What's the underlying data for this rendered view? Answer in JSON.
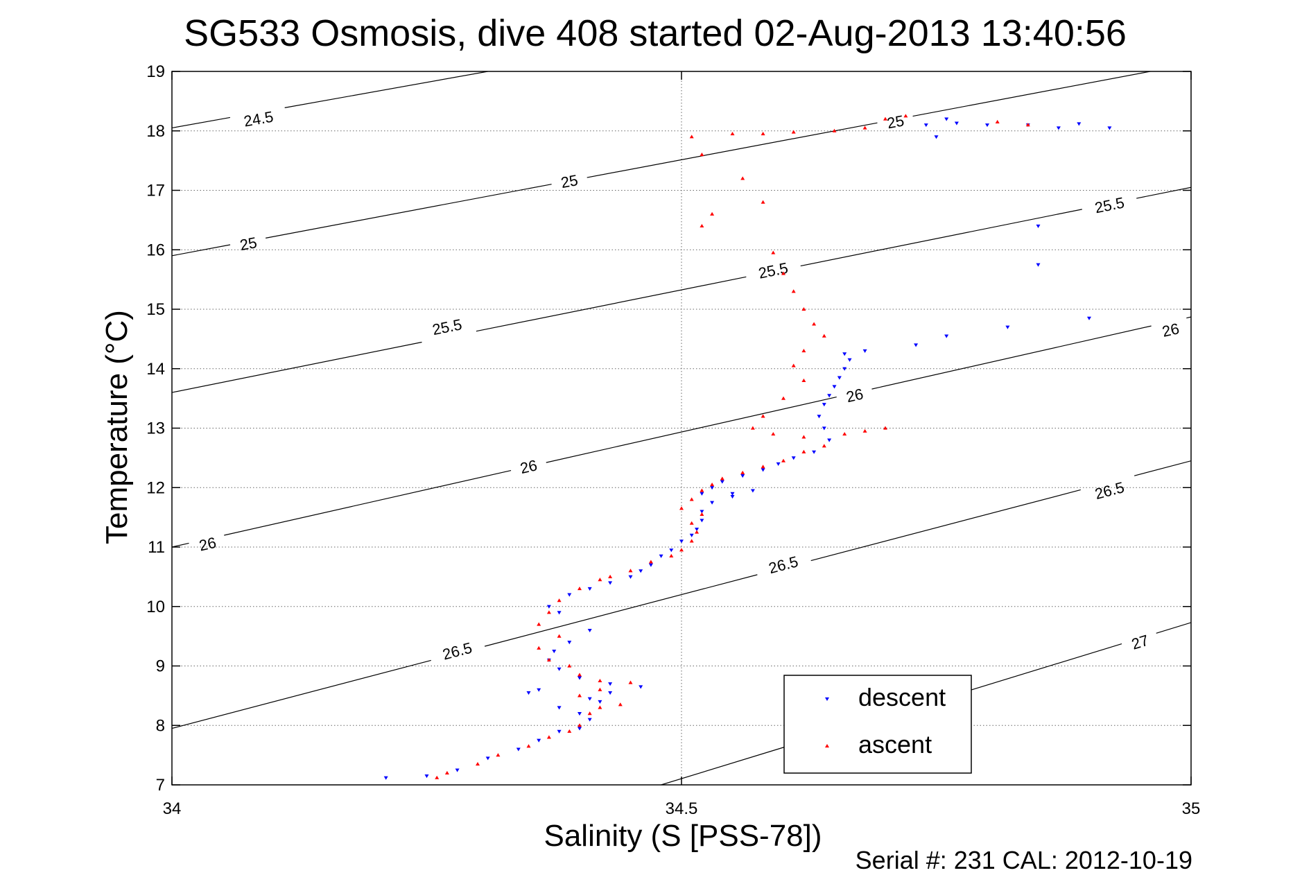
{
  "chart_data": {
    "type": "scatter",
    "title": "SG533 Osmosis, dive 408 started 02-Aug-2013 13:40:56",
    "xlabel": "Salinity (S [PSS-78])",
    "ylabel": "Temperature (°C)",
    "xlim": [
      34,
      35
    ],
    "ylim": [
      7,
      19
    ],
    "xticks": [
      34,
      34.5,
      35
    ],
    "xtick_labels": [
      "34",
      "34.5",
      "35"
    ],
    "yticks": [
      7,
      8,
      9,
      10,
      11,
      12,
      13,
      14,
      15,
      16,
      17,
      18,
      19
    ],
    "ytick_labels": [
      "7",
      "8",
      "9",
      "10",
      "11",
      "12",
      "13",
      "14",
      "15",
      "16",
      "17",
      "18",
      "19"
    ],
    "grid": true,
    "legend_position": "bottom-right",
    "footer": "Serial #: 231  CAL: 2012-10-19",
    "density_contours": [
      {
        "label": "24.5",
        "points": [
          [
            34.0,
            18.05
          ],
          [
            34.31,
            19.0
          ]
        ],
        "label_positions": [
          [
            34.085,
            18.2
          ]
        ]
      },
      {
        "label": "25",
        "points": [
          [
            34.0,
            15.9
          ],
          [
            34.96,
            19.0
          ]
        ],
        "label_positions": [
          [
            34.075,
            16.1
          ],
          [
            34.39,
            17.15
          ],
          [
            34.71,
            18.15
          ]
        ]
      },
      {
        "label": "25.5",
        "points": [
          [
            34.0,
            13.6
          ],
          [
            35.0,
            17.05
          ]
        ],
        "label_positions": [
          [
            34.27,
            14.7
          ],
          [
            34.59,
            15.65
          ],
          [
            34.92,
            16.75
          ]
        ]
      },
      {
        "label": "26",
        "points": [
          [
            34.0,
            11.0
          ],
          [
            35.0,
            14.87
          ]
        ],
        "label_positions": [
          [
            34.035,
            11.05
          ],
          [
            34.35,
            12.35
          ],
          [
            34.67,
            13.55
          ],
          [
            34.98,
            14.65
          ]
        ]
      },
      {
        "label": "26.5",
        "points": [
          [
            34.0,
            7.95
          ],
          [
            35.0,
            12.45
          ]
        ],
        "label_positions": [
          [
            34.28,
            9.25
          ],
          [
            34.6,
            10.7
          ],
          [
            34.92,
            11.95
          ]
        ]
      },
      {
        "label": "27",
        "points": [
          [
            34.48,
            7.0
          ],
          [
            35.0,
            9.73
          ]
        ],
        "label_positions": [
          [
            34.95,
            9.4
          ]
        ]
      }
    ],
    "series": [
      {
        "name": "descent",
        "color": "#0000ff",
        "marker": "triangle-down",
        "points": [
          [
            34.77,
            18.13
          ],
          [
            34.75,
            17.9
          ],
          [
            34.74,
            18.1
          ],
          [
            34.76,
            18.2
          ],
          [
            34.8,
            18.1
          ],
          [
            34.84,
            18.1
          ],
          [
            34.87,
            18.05
          ],
          [
            34.89,
            18.12
          ],
          [
            34.92,
            18.05
          ],
          [
            34.85,
            16.4
          ],
          [
            34.85,
            15.75
          ],
          [
            34.9,
            14.85
          ],
          [
            34.82,
            14.7
          ],
          [
            34.76,
            14.55
          ],
          [
            34.73,
            14.4
          ],
          [
            34.68,
            14.3
          ],
          [
            34.66,
            14.25
          ],
          [
            34.665,
            14.15
          ],
          [
            34.66,
            14.0
          ],
          [
            34.655,
            13.85
          ],
          [
            34.65,
            13.7
          ],
          [
            34.645,
            13.55
          ],
          [
            34.64,
            13.4
          ],
          [
            34.635,
            13.2
          ],
          [
            34.64,
            13.0
          ],
          [
            34.645,
            12.8
          ],
          [
            34.63,
            12.6
          ],
          [
            34.61,
            12.5
          ],
          [
            34.595,
            12.4
          ],
          [
            34.58,
            12.3
          ],
          [
            34.56,
            12.2
          ],
          [
            34.54,
            12.1
          ],
          [
            34.53,
            12.0
          ],
          [
            34.52,
            11.9
          ],
          [
            34.55,
            11.9
          ],
          [
            34.57,
            11.95
          ],
          [
            34.55,
            11.85
          ],
          [
            34.53,
            11.75
          ],
          [
            34.52,
            11.6
          ],
          [
            34.52,
            11.45
          ],
          [
            34.515,
            11.3
          ],
          [
            34.51,
            11.2
          ],
          [
            34.5,
            11.1
          ],
          [
            34.49,
            10.95
          ],
          [
            34.48,
            10.85
          ],
          [
            34.47,
            10.7
          ],
          [
            34.46,
            10.6
          ],
          [
            34.45,
            10.5
          ],
          [
            34.43,
            10.4
          ],
          [
            34.41,
            10.3
          ],
          [
            34.39,
            10.2
          ],
          [
            34.37,
            10.0
          ],
          [
            34.38,
            9.9
          ],
          [
            34.41,
            9.6
          ],
          [
            34.39,
            9.4
          ],
          [
            34.375,
            9.25
          ],
          [
            34.37,
            9.1
          ],
          [
            34.38,
            8.95
          ],
          [
            34.4,
            8.8
          ],
          [
            34.43,
            8.7
          ],
          [
            34.46,
            8.65
          ],
          [
            34.43,
            8.55
          ],
          [
            34.41,
            8.45
          ],
          [
            34.38,
            8.3
          ],
          [
            34.4,
            8.2
          ],
          [
            34.41,
            8.1
          ],
          [
            34.4,
            7.95
          ],
          [
            34.38,
            7.9
          ],
          [
            34.36,
            7.75
          ],
          [
            34.34,
            7.6
          ],
          [
            34.31,
            7.45
          ],
          [
            34.28,
            7.25
          ],
          [
            34.25,
            7.15
          ],
          [
            34.21,
            7.12
          ],
          [
            34.35,
            8.55
          ],
          [
            34.36,
            8.6
          ],
          [
            34.42,
            8.4
          ]
        ]
      },
      {
        "name": "ascent",
        "color": "#ff0000",
        "marker": "triangle-up",
        "points": [
          [
            34.51,
            17.9
          ],
          [
            34.55,
            17.95
          ],
          [
            34.58,
            17.95
          ],
          [
            34.61,
            17.98
          ],
          [
            34.65,
            18.0
          ],
          [
            34.68,
            18.05
          ],
          [
            34.7,
            18.2
          ],
          [
            34.72,
            18.25
          ],
          [
            34.81,
            18.15
          ],
          [
            34.84,
            18.1
          ],
          [
            34.52,
            17.6
          ],
          [
            34.56,
            17.2
          ],
          [
            34.58,
            16.8
          ],
          [
            34.53,
            16.6
          ],
          [
            34.52,
            16.4
          ],
          [
            34.59,
            15.95
          ],
          [
            34.6,
            15.6
          ],
          [
            34.61,
            15.3
          ],
          [
            34.62,
            15.0
          ],
          [
            34.63,
            14.75
          ],
          [
            34.64,
            14.55
          ],
          [
            34.62,
            14.3
          ],
          [
            34.61,
            14.05
          ],
          [
            34.62,
            13.8
          ],
          [
            34.6,
            13.5
          ],
          [
            34.58,
            13.2
          ],
          [
            34.57,
            13.0
          ],
          [
            34.59,
            12.9
          ],
          [
            34.62,
            12.85
          ],
          [
            34.66,
            12.9
          ],
          [
            34.68,
            12.95
          ],
          [
            34.7,
            13.0
          ],
          [
            34.64,
            12.7
          ],
          [
            34.62,
            12.6
          ],
          [
            34.6,
            12.45
          ],
          [
            34.58,
            12.35
          ],
          [
            34.56,
            12.25
          ],
          [
            34.54,
            12.15
          ],
          [
            34.53,
            12.05
          ],
          [
            34.52,
            11.95
          ],
          [
            34.51,
            11.8
          ],
          [
            34.5,
            11.65
          ],
          [
            34.52,
            11.55
          ],
          [
            34.51,
            11.4
          ],
          [
            34.515,
            11.25
          ],
          [
            34.51,
            11.1
          ],
          [
            34.5,
            10.95
          ],
          [
            34.49,
            10.85
          ],
          [
            34.47,
            10.75
          ],
          [
            34.45,
            10.6
          ],
          [
            34.43,
            10.5
          ],
          [
            34.42,
            10.45
          ],
          [
            34.4,
            10.3
          ],
          [
            34.38,
            10.1
          ],
          [
            34.37,
            9.9
          ],
          [
            34.36,
            9.7
          ],
          [
            34.38,
            9.5
          ],
          [
            34.36,
            9.3
          ],
          [
            34.37,
            9.1
          ],
          [
            34.39,
            9.0
          ],
          [
            34.4,
            8.85
          ],
          [
            34.42,
            8.75
          ],
          [
            34.45,
            8.72
          ],
          [
            34.42,
            8.6
          ],
          [
            34.4,
            8.5
          ],
          [
            34.44,
            8.35
          ],
          [
            34.42,
            8.3
          ],
          [
            34.41,
            8.2
          ],
          [
            34.4,
            8.0
          ],
          [
            34.39,
            7.9
          ],
          [
            34.37,
            7.8
          ],
          [
            34.35,
            7.65
          ],
          [
            34.32,
            7.5
          ],
          [
            34.3,
            7.35
          ],
          [
            34.27,
            7.2
          ],
          [
            34.26,
            7.12
          ]
        ]
      }
    ]
  }
}
